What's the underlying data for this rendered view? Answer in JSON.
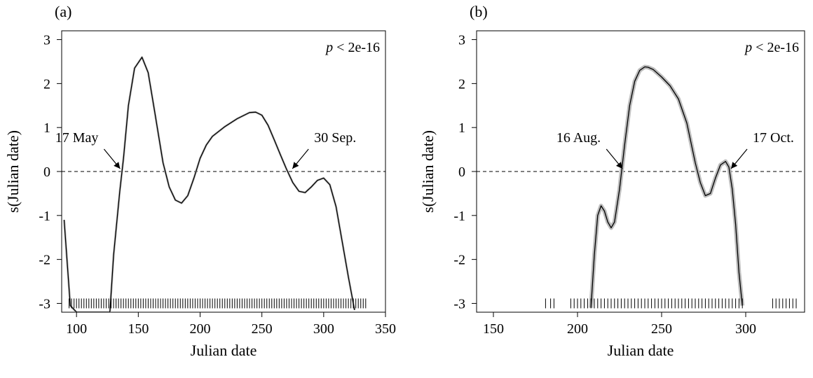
{
  "chart_data": [
    {
      "type": "line",
      "panel_label": "(a)",
      "annotation_p": "< 2e-16",
      "p_symbol": "p",
      "xlabel": "Julian date",
      "ylabel": "s(Julian date)",
      "xlim": [
        88,
        350
      ],
      "ylim": [
        -3.2,
        3.2
      ],
      "xticks": [
        100,
        150,
        200,
        250,
        300,
        350
      ],
      "yticks": [
        -3,
        -2,
        -1,
        0,
        1,
        2,
        3
      ],
      "hline": 0,
      "series": [
        {
          "x": [
            90,
            95,
            100,
            110,
            120,
            127,
            130,
            135,
            138,
            142,
            147,
            153,
            158,
            163,
            170,
            175,
            180,
            185,
            190,
            195,
            200,
            205,
            210,
            220,
            230,
            240,
            245,
            250,
            255,
            260,
            265,
            270,
            275,
            280,
            285,
            290,
            295,
            300,
            305,
            310,
            315,
            320,
            325
          ],
          "y": [
            -1.1,
            -3.05,
            -3.2,
            -3.2,
            -3.2,
            -3.2,
            -1.9,
            -0.45,
            0.3,
            1.5,
            2.35,
            2.6,
            2.25,
            1.4,
            0.2,
            -0.35,
            -0.65,
            -0.72,
            -0.55,
            -0.15,
            0.3,
            0.6,
            0.8,
            1.02,
            1.2,
            1.34,
            1.35,
            1.28,
            1.05,
            0.72,
            0.38,
            0.05,
            -0.25,
            -0.45,
            -0.48,
            -0.35,
            -0.2,
            -0.15,
            -0.3,
            -0.8,
            -1.6,
            -2.4,
            -3.15
          ]
        }
      ],
      "rug": [
        94,
        96,
        98,
        100,
        102,
        104,
        106,
        108,
        110,
        112,
        114,
        116,
        118,
        120,
        122,
        124,
        126,
        128,
        130,
        132,
        134,
        136,
        138,
        140,
        142,
        144,
        146,
        148,
        150,
        152,
        154,
        156,
        158,
        160,
        162,
        164,
        166,
        168,
        170,
        172,
        174,
        176,
        178,
        180,
        182,
        184,
        186,
        188,
        190,
        192,
        194,
        196,
        198,
        200,
        202,
        204,
        206,
        208,
        210,
        212,
        214,
        216,
        218,
        220,
        222,
        224,
        226,
        228,
        230,
        232,
        234,
        236,
        238,
        240,
        242,
        244,
        246,
        248,
        250,
        252,
        254,
        256,
        258,
        260,
        262,
        264,
        266,
        268,
        270,
        272,
        274,
        276,
        278,
        280,
        282,
        284,
        286,
        288,
        290,
        292,
        294,
        296,
        298,
        300,
        302,
        304,
        306,
        308,
        310,
        312,
        314,
        316,
        318,
        320,
        322,
        324,
        326,
        328,
        330,
        332,
        334
      ],
      "annotations": [
        {
          "text": "17 May",
          "x": 137,
          "y": 0
        },
        {
          "text": "30 Sep.",
          "x": 273,
          "y": 0
        }
      ]
    },
    {
      "type": "line",
      "panel_label": "(b)",
      "annotation_p": "< 2e-16",
      "p_symbol": "p",
      "xlabel": "Julian date",
      "ylabel": "s(Julian date)",
      "xlim": [
        140,
        335
      ],
      "ylim": [
        -3.2,
        3.2
      ],
      "xticks": [
        150,
        200,
        250,
        300
      ],
      "yticks": [
        -3,
        -2,
        -1,
        0,
        1,
        2,
        3
      ],
      "hline": 0,
      "series": [
        {
          "x": [
            208,
            210,
            212,
            214,
            216,
            218,
            220,
            222,
            225,
            228,
            231,
            234,
            237,
            240,
            242,
            245,
            250,
            255,
            260,
            265,
            270,
            273,
            276,
            279,
            282,
            285,
            288,
            290,
            292,
            294,
            296,
            298
          ],
          "y": [
            -3.1,
            -1.9,
            -1.0,
            -0.78,
            -0.9,
            -1.15,
            -1.28,
            -1.15,
            -0.4,
            0.6,
            1.5,
            2.05,
            2.3,
            2.38,
            2.37,
            2.32,
            2.15,
            1.95,
            1.65,
            1.1,
            0.2,
            -0.25,
            -0.55,
            -0.5,
            -0.15,
            0.15,
            0.23,
            0.1,
            -0.4,
            -1.2,
            -2.3,
            -3.05
          ]
        }
      ],
      "rug": [
        181,
        184,
        186,
        196,
        198,
        200,
        202,
        204,
        206,
        208,
        210,
        212,
        214,
        216,
        218,
        220,
        222,
        224,
        226,
        228,
        230,
        232,
        234,
        236,
        238,
        240,
        242,
        244,
        246,
        248,
        250,
        252,
        254,
        256,
        258,
        260,
        262,
        264,
        266,
        268,
        270,
        272,
        274,
        276,
        278,
        280,
        282,
        284,
        286,
        288,
        290,
        292,
        294,
        296,
        298,
        316,
        318,
        320,
        322,
        324,
        326,
        328,
        330
      ],
      "annotations": [
        {
          "text": "16 Aug.",
          "x": 228,
          "y": 0
        },
        {
          "text": "17 Oct.",
          "x": 290,
          "y": 0
        }
      ]
    }
  ]
}
